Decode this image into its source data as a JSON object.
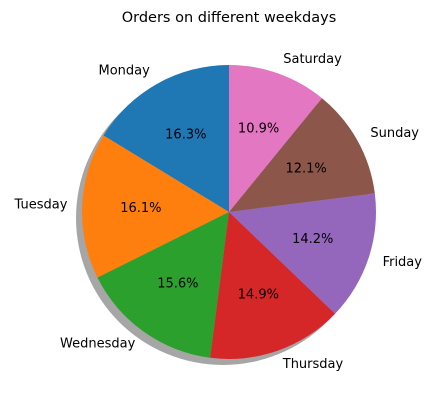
{
  "chart_data": {
    "type": "pie",
    "title": "Orders on different weekdays",
    "start_angle_deg": 90,
    "direction": "counterclockwise",
    "shadow": true,
    "slices": [
      {
        "label": "Monday",
        "percent": 16.3,
        "percent_label": "16.3%",
        "color": "#1f77b4"
      },
      {
        "label": "Tuesday",
        "percent": 16.1,
        "percent_label": "16.1%",
        "color": "#ff7f0e"
      },
      {
        "label": "Wednesday",
        "percent": 15.6,
        "percent_label": "15.6%",
        "color": "#2ca02c"
      },
      {
        "label": "Thursday",
        "percent": 14.9,
        "percent_label": "14.9%",
        "color": "#d62728"
      },
      {
        "label": "Friday",
        "percent": 14.2,
        "percent_label": "14.2%",
        "color": "#9467bd"
      },
      {
        "label": "Sunday",
        "percent": 12.1,
        "percent_label": "12.1%",
        "color": "#8c564b"
      },
      {
        "label": "Saturday",
        "percent": 10.9,
        "percent_label": "10.9%",
        "color": "#e377c2"
      }
    ]
  }
}
